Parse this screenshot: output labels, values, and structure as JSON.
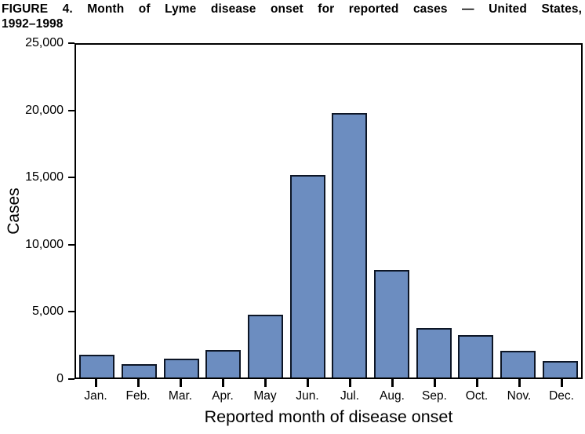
{
  "figure": {
    "title_line1": "FIGURE 4. Month of Lyme disease onset for reported cases — United States,",
    "title_line2": "1992–1998"
  },
  "chart_data": {
    "type": "bar",
    "title": "FIGURE 4. Month of Lyme disease onset for reported cases — United States, 1992–1998",
    "categories": [
      "Jan.",
      "Feb.",
      "Mar.",
      "Apr.",
      "May",
      "Jun.",
      "Jul.",
      "Aug.",
      "Sep.",
      "Oct.",
      "Nov.",
      "Dec."
    ],
    "values": [
      1700,
      1000,
      1400,
      2050,
      4700,
      15200,
      19900,
      8050,
      3700,
      3200,
      2000,
      1250
    ],
    "xlabel": "Reported month of disease onset",
    "ylabel": "Cases",
    "ylim": [
      0,
      25000
    ],
    "yticks": [
      0,
      5000,
      10000,
      15000,
      20000,
      25000
    ],
    "ytick_labels": [
      "0",
      "5,000",
      "10,000",
      "15,000",
      "20,000",
      "25,000"
    ],
    "grid": false,
    "legend": "none",
    "bar_color": "#6C8DC0",
    "bar_border_color": "#0d1626",
    "axis_color": "#000000"
  }
}
